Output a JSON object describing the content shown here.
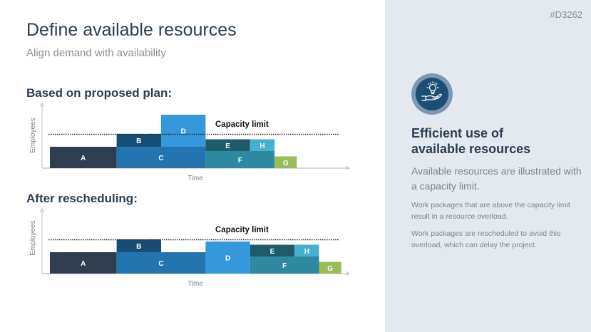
{
  "header": {
    "title": "Define available resources",
    "subtitle": "Align demand with availability"
  },
  "doc_id": "#D3262",
  "sections": [
    {
      "heading": "Based on proposed plan:"
    },
    {
      "heading": "After rescheduling:"
    }
  ],
  "sidebar": {
    "icon": "hand-lightbulb-icon",
    "heading_line1": "Efficient use of",
    "heading_line2": "available resources",
    "lead": "Available resources are illustrated with a capacity limit.",
    "paragraph1": "Work packages that are above the capacity limit result in a resource overload.",
    "paragraph2": "Work packages are rescheduled to avoid this overload, which can delay the project."
  },
  "colors": {
    "A": "#2e3e50",
    "B": "#174e75",
    "C": "#2275ae",
    "D": "#3598dc",
    "E": "#1f5c6b",
    "F": "#2e8aa0",
    "G": "#9bbb59",
    "H": "#45b0cf",
    "axis": "#bfbfbf",
    "capacity_line": "#222222"
  },
  "chart_data": [
    {
      "type": "gantt-resource",
      "title": "Based on proposed plan:",
      "xlabel": "Time",
      "ylabel": "Employees",
      "capacity_label": "Capacity limit",
      "x_range": [
        0,
        14
      ],
      "y_range": [
        0,
        3
      ],
      "capacity": 1.6,
      "packages": [
        {
          "label": "A",
          "start": 0,
          "end": 3,
          "base": 0,
          "height": 1.0
        },
        {
          "label": "C",
          "start": 3,
          "end": 7,
          "base": 0,
          "height": 1.0
        },
        {
          "label": "B",
          "start": 3,
          "end": 5,
          "base": 1.0,
          "height": 0.6
        },
        {
          "label": "D",
          "start": 5,
          "end": 7,
          "base": 1.0,
          "height": 1.5
        },
        {
          "label": "F",
          "start": 7,
          "end": 10.1,
          "base": 0,
          "height": 0.8
        },
        {
          "label": "E",
          "start": 7,
          "end": 9,
          "base": 0.8,
          "height": 0.55
        },
        {
          "label": "H",
          "start": 9,
          "end": 10.1,
          "base": 0.8,
          "height": 0.55
        },
        {
          "label": "G",
          "start": 10.1,
          "end": 11.1,
          "base": 0,
          "height": 0.55
        }
      ]
    },
    {
      "type": "gantt-resource",
      "title": "After rescheduling:",
      "xlabel": "Time",
      "ylabel": "Employees",
      "capacity_label": "Capacity limit",
      "x_range": [
        0,
        14
      ],
      "y_range": [
        0,
        3
      ],
      "capacity": 1.6,
      "packages": [
        {
          "label": "A",
          "start": 0,
          "end": 3,
          "base": 0,
          "height": 1.0
        },
        {
          "label": "C",
          "start": 3,
          "end": 7,
          "base": 0,
          "height": 1.0
        },
        {
          "label": "B",
          "start": 3,
          "end": 5,
          "base": 1.0,
          "height": 0.6
        },
        {
          "label": "D",
          "start": 7,
          "end": 9,
          "base": 0,
          "height": 1.5
        },
        {
          "label": "F",
          "start": 9,
          "end": 12.1,
          "base": 0,
          "height": 0.8
        },
        {
          "label": "E",
          "start": 9,
          "end": 11,
          "base": 0.8,
          "height": 0.55
        },
        {
          "label": "H",
          "start": 11,
          "end": 12.1,
          "base": 0.8,
          "height": 0.55
        },
        {
          "label": "G",
          "start": 12.1,
          "end": 13.1,
          "base": 0,
          "height": 0.55
        }
      ]
    }
  ]
}
